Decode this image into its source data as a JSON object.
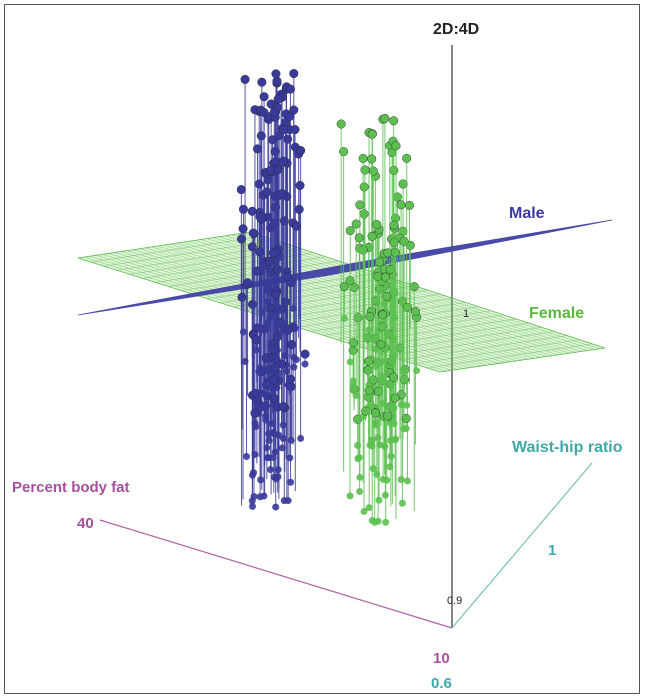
{
  "chart_data": {
    "type": "scatter",
    "title": "",
    "axes": {
      "z": {
        "label": "2D:4D",
        "ticks": [
          "0.9",
          "1"
        ],
        "range": [
          0.9,
          1.1
        ]
      },
      "percent_body_fat": {
        "label": "Percent body fat",
        "ticks": [
          "10",
          "40"
        ],
        "range": [
          10,
          40
        ]
      },
      "waist_hip_ratio": {
        "label": "Waist-hip ratio",
        "ticks": [
          "0.6",
          "1"
        ],
        "range": [
          0.6,
          1.0
        ]
      }
    },
    "series": [
      {
        "name": "Male",
        "color": "#3a3a9a",
        "marker": "sphere-on-stem",
        "has_regression_plane": true
      },
      {
        "name": "Female",
        "color": "#5cc050",
        "marker": "sphere-on-stem",
        "has_regression_plane": true
      }
    ],
    "grid": false,
    "legend": "labels beside regression planes"
  }
}
